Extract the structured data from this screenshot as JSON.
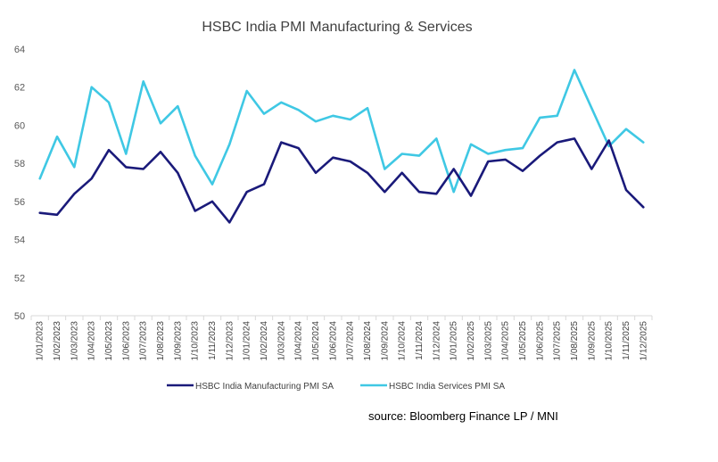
{
  "source_text": "source:  Bloomberg Finance LP / MNI",
  "chart_data": {
    "type": "line",
    "title": "HSBC India PMI Manufacturing & Services",
    "xlabel": "",
    "ylabel": "",
    "ylim": [
      50,
      64
    ],
    "yticks": [
      50,
      52,
      54,
      56,
      58,
      60,
      62,
      64
    ],
    "categories": [
      "1/01/2023",
      "1/02/2023",
      "1/03/2023",
      "1/04/2023",
      "1/05/2023",
      "1/06/2023",
      "1/07/2023",
      "1/08/2023",
      "1/09/2023",
      "1/10/2023",
      "1/11/2023",
      "1/12/2023",
      "1/01/2024",
      "1/02/2024",
      "1/03/2024",
      "1/04/2024",
      "1/05/2024",
      "1/06/2024",
      "1/07/2024",
      "1/08/2024",
      "1/09/2024",
      "1/10/2024",
      "1/11/2024",
      "1/12/2024",
      "1/01/2025",
      "1/02/2025",
      "1/03/2025",
      "1/04/2025",
      "1/05/2025",
      "1/06/2025",
      "1/07/2025",
      "1/08/2025",
      "1/09/2025",
      "1/10/2025",
      "1/11/2025",
      "1/12/2025"
    ],
    "series": [
      {
        "name": "HSBC India Manufacturing PMI SA",
        "color": "#1a1a7a",
        "values": [
          55.4,
          55.3,
          56.4,
          57.2,
          58.7,
          57.8,
          57.7,
          58.6,
          57.5,
          55.5,
          56.0,
          54.9,
          56.5,
          56.9,
          59.1,
          58.8,
          57.5,
          58.3,
          58.1,
          57.5,
          56.5,
          57.5,
          56.5,
          56.4,
          57.7,
          56.3,
          58.1,
          58.2,
          57.6,
          58.4,
          59.1,
          59.3,
          57.7,
          59.2,
          56.6,
          55.7
        ]
      },
      {
        "name": "HSBC India Services PMI SA",
        "color": "#3fc8e4",
        "values": [
          57.2,
          59.4,
          57.8,
          62.0,
          61.2,
          58.5,
          62.3,
          60.1,
          61.0,
          58.4,
          56.9,
          59.0,
          61.8,
          60.6,
          61.2,
          60.8,
          60.2,
          60.5,
          60.3,
          60.9,
          57.7,
          58.5,
          58.4,
          59.3,
          56.5,
          59.0,
          58.5,
          58.7,
          58.8,
          60.4,
          60.5,
          62.9,
          60.9,
          58.9,
          59.8,
          59.1
        ]
      }
    ],
    "legend": "bottom"
  }
}
